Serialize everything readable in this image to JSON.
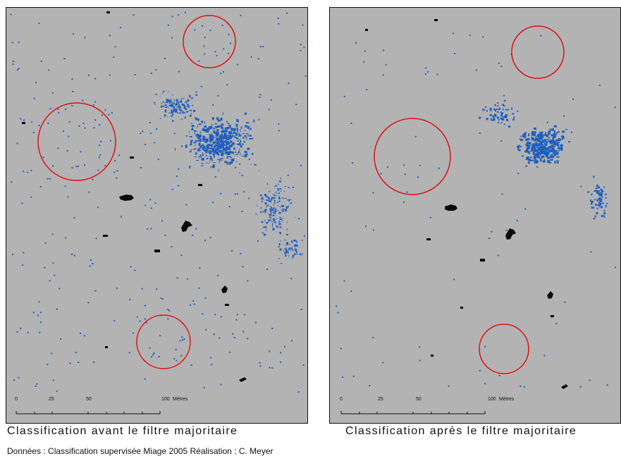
{
  "colors": {
    "map_background": "#b3b3b3",
    "class_blue": "#1f5fbf",
    "class_black": "#0a0a0a",
    "highlight_circle": "#e01010"
  },
  "maps": [
    {
      "caption": "Classification avant le filtre majoritaire",
      "scale_bar": {
        "ticks": [
          "0",
          "25",
          "50",
          "100"
        ],
        "unit": "Mètres"
      }
    },
    {
      "caption": "Classification après le filtre majoritaire",
      "scale_bar": {
        "ticks": [
          "0",
          "25",
          "50",
          "100"
        ],
        "unit": "Mètres"
      }
    }
  ],
  "credit": "Données : Classification supervisée Miage 2005 Réalisation : C. Meyer"
}
